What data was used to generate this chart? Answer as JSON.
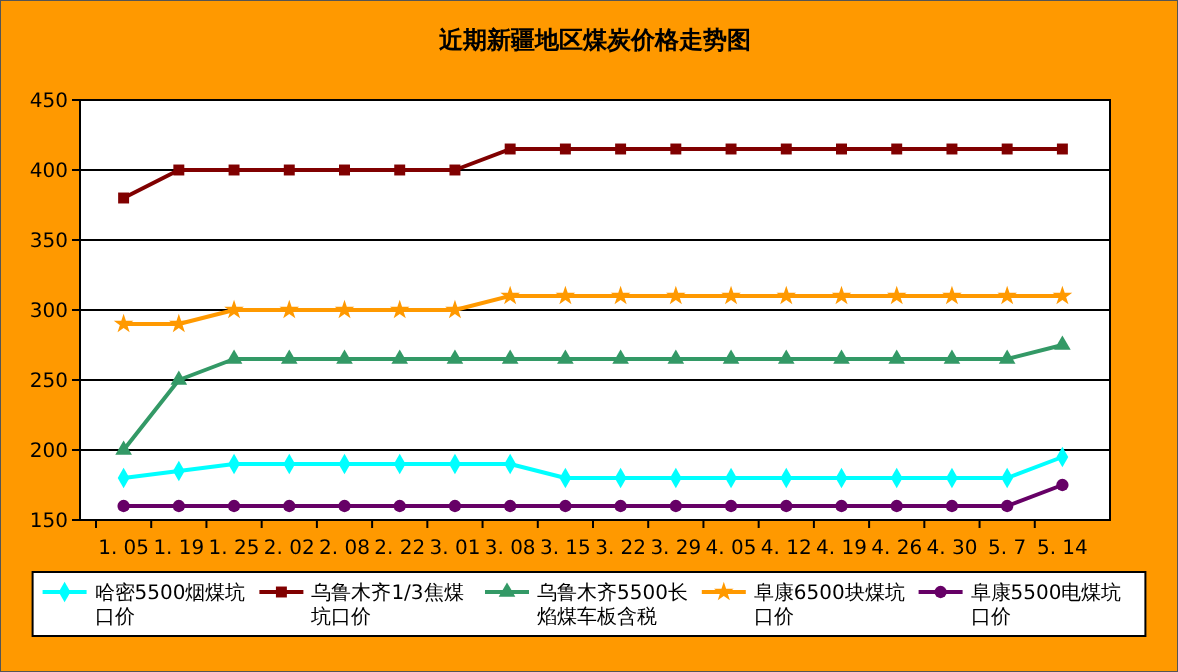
{
  "chart_data": {
    "type": "line",
    "title": "近期新疆地区煤炭价格走势图",
    "categories": [
      "1. 05",
      "1. 19",
      "1. 25",
      "2. 02",
      "2. 08",
      "2. 22",
      "3. 01",
      "3. 08",
      "3. 15",
      "3. 22",
      "3. 29",
      "4. 05",
      "4. 12",
      "4. 19",
      "4. 26",
      "4. 30",
      "5. 7",
      "5. 14"
    ],
    "series": [
      {
        "name": "哈密5500烟煤坑口价",
        "color": "#00ffff",
        "marker": "diamond",
        "values": [
          180,
          185,
          190,
          190,
          190,
          190,
          190,
          190,
          180,
          180,
          180,
          180,
          180,
          180,
          180,
          180,
          180,
          195
        ]
      },
      {
        "name": "乌鲁木齐1/3焦煤坑口价",
        "color": "#800000",
        "marker": "square",
        "values": [
          380,
          400,
          400,
          400,
          400,
          400,
          400,
          415,
          415,
          415,
          415,
          415,
          415,
          415,
          415,
          415,
          415,
          415
        ]
      },
      {
        "name": "乌鲁木齐5500长焰煤车板含税",
        "color": "#339966",
        "marker": "triangle",
        "values": [
          200,
          250,
          265,
          265,
          265,
          265,
          265,
          265,
          265,
          265,
          265,
          265,
          265,
          265,
          265,
          265,
          265,
          275
        ]
      },
      {
        "name": "阜康6500块煤坑口价",
        "color": "#ff9900",
        "marker": "star",
        "values": [
          290,
          290,
          300,
          300,
          300,
          300,
          300,
          310,
          310,
          310,
          310,
          310,
          310,
          310,
          310,
          310,
          310,
          310
        ]
      },
      {
        "name": "阜康5500电煤坑口价",
        "color": "#660066",
        "marker": "circle",
        "values": [
          160,
          160,
          160,
          160,
          160,
          160,
          160,
          160,
          160,
          160,
          160,
          160,
          160,
          160,
          160,
          160,
          160,
          175
        ]
      }
    ],
    "ylim": [
      150,
      450
    ],
    "yticks": [
      150,
      200,
      250,
      300,
      350,
      400,
      450
    ],
    "grid": "y",
    "legend": "bottom",
    "line_style": "solid"
  }
}
